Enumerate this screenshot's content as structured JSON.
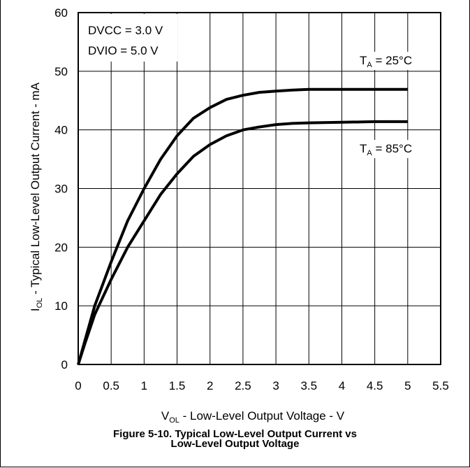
{
  "chart_data": {
    "type": "line",
    "caption_line1": "Figure 5-10. Typical Low-Level Output Current vs",
    "caption_line2": "Low-Level Output Voltage",
    "xlabel": {
      "main": "V",
      "sub": "OL",
      "rest": " - Low-Level Output Voltage - V"
    },
    "ylabel": {
      "main": "I",
      "sub": "OL",
      "rest": " - Typical Low-Level Output Current - mA"
    },
    "xlim": [
      0,
      5.5
    ],
    "ylim": [
      0,
      60
    ],
    "x_ticks": [
      "0",
      "0.5",
      "1",
      "1.5",
      "2",
      "2.5",
      "3",
      "3.5",
      "4",
      "4.5",
      "5",
      "5.5"
    ],
    "y_ticks": [
      "0",
      "10",
      "20",
      "30",
      "40",
      "50",
      "60"
    ],
    "grid": true,
    "conditions": [
      "DVCC = 3.0 V",
      "DVIO = 5.0 V"
    ],
    "series": [
      {
        "name": {
          "main": "T",
          "sub": "A",
          "rest": " = 25°C"
        },
        "x": [
          0,
          0.1,
          0.25,
          0.5,
          0.75,
          1.0,
          1.25,
          1.5,
          1.75,
          2.0,
          2.25,
          2.5,
          2.75,
          3.0,
          3.25,
          3.5,
          4.0,
          4.5,
          5.0
        ],
        "y": [
          0,
          4,
          10,
          17.5,
          24.5,
          30,
          35,
          39,
          42,
          43.8,
          45.2,
          45.9,
          46.4,
          46.6,
          46.8,
          46.9,
          46.9,
          46.9,
          46.9
        ]
      },
      {
        "name": {
          "main": "T",
          "sub": "A",
          "rest": " = 85°C"
        },
        "x": [
          0,
          0.1,
          0.25,
          0.5,
          0.75,
          1.0,
          1.25,
          1.5,
          1.75,
          2.0,
          2.25,
          2.5,
          2.75,
          3.0,
          3.25,
          3.5,
          4.0,
          4.5,
          5.0
        ],
        "y": [
          0,
          3.5,
          8.5,
          14.5,
          20,
          24.5,
          29,
          32.5,
          35.5,
          37.5,
          39,
          40,
          40.5,
          40.9,
          41.1,
          41.2,
          41.3,
          41.4,
          41.4
        ]
      }
    ],
    "line_color": "#000000"
  }
}
